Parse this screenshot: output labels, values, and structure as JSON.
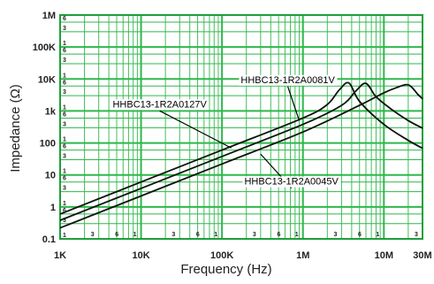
{
  "chart_data": {
    "type": "line",
    "xlabel": "Frequency (Hz)",
    "ylabel": "Impedance (Ω)",
    "xscale": "log",
    "yscale": "log",
    "xlim": [
      1000,
      30000000
    ],
    "ylim": [
      0.1,
      1000000
    ],
    "grid": true,
    "legend": "inline-labels",
    "colors": {
      "grid": "#2eb84a",
      "frame": "#1e9e3a",
      "series": "#111111",
      "text": "#222222"
    },
    "x_ticks": [
      {
        "value": 1000,
        "label": "1K"
      },
      {
        "value": 10000,
        "label": "10K"
      },
      {
        "value": 100000,
        "label": "100K"
      },
      {
        "value": 1000000,
        "label": "1M"
      },
      {
        "value": 10000000,
        "label": "10M"
      },
      {
        "value": 30000000,
        "label": "30M"
      }
    ],
    "x_minor_labels": [
      {
        "value": 3000,
        "label": "3"
      },
      {
        "value": 6000,
        "label": "6"
      },
      {
        "value": 10000,
        "label": "1"
      },
      {
        "value": 30000,
        "label": "3"
      },
      {
        "value": 60000,
        "label": "6"
      },
      {
        "value": 100000,
        "label": "1"
      },
      {
        "value": 300000,
        "label": "3"
      },
      {
        "value": 600000,
        "label": "6"
      },
      {
        "value": 1000000,
        "label": "1"
      },
      {
        "value": 3000000,
        "label": "3"
      },
      {
        "value": 6000000,
        "label": "6"
      },
      {
        "value": 10000000,
        "label": "1"
      },
      {
        "value": 30000000,
        "label": "3"
      }
    ],
    "y_ticks": [
      {
        "value": 0.1,
        "label": "0.1"
      },
      {
        "value": 1,
        "label": "1"
      },
      {
        "value": 10,
        "label": "10"
      },
      {
        "value": 100,
        "label": "100"
      },
      {
        "value": 1000,
        "label": "1k"
      },
      {
        "value": 10000,
        "label": "10K"
      },
      {
        "value": 100000,
        "label": "100K"
      },
      {
        "value": 1000000,
        "label": "1M"
      }
    ],
    "y_minor_labels": [
      "1",
      "3",
      "6"
    ],
    "series": [
      {
        "name": "HHBC13-1R2A0127V",
        "x": [
          1000,
          10000,
          100000,
          1000000,
          2000000,
          2800000,
          3700000,
          5000000,
          10000000,
          20000000,
          30000000
        ],
        "y": [
          0.6,
          6,
          60,
          600,
          1600,
          4500,
          7500,
          2000,
          380,
          120,
          68
        ]
      },
      {
        "name": "HHBC13-1R2A0081V",
        "x": [
          1000,
          10000,
          100000,
          1000000,
          3000000,
          4500000,
          6000000,
          8000000,
          12000000,
          20000000,
          30000000
        ],
        "y": [
          0.38,
          3.8,
          38,
          380,
          1500,
          4200,
          7300,
          2800,
          1200,
          500,
          290
        ]
      },
      {
        "name": "HHBC13-1R2A0045V",
        "x": [
          1000,
          10000,
          100000,
          1000000,
          5000000,
          10000000,
          15000000,
          19000000,
          22000000,
          26000000,
          30000000
        ],
        "y": [
          0.22,
          2.2,
          22,
          220,
          1500,
          3700,
          5600,
          6700,
          5600,
          3400,
          2400
        ]
      }
    ],
    "annotations": [
      {
        "text": "HHBC13-1R2A0081V",
        "series": "HHBC13-1R2A0081V",
        "x": 650000,
        "y": 7500,
        "leader_to": {
          "x": 900000,
          "y": 500
        }
      },
      {
        "text": "HHBC13-1R2A0127V",
        "series": "HHBC13-1R2A0127V",
        "x": 17000,
        "y": 1300,
        "leader_to": {
          "x": 130000,
          "y": 70
        }
      },
      {
        "text": "HHBC13-1R2A0045V",
        "series": "HHBC13-1R2A0045V",
        "x": 720000,
        "y": 5,
        "leader_to": {
          "x": 300000,
          "y": 45
        }
      }
    ]
  }
}
